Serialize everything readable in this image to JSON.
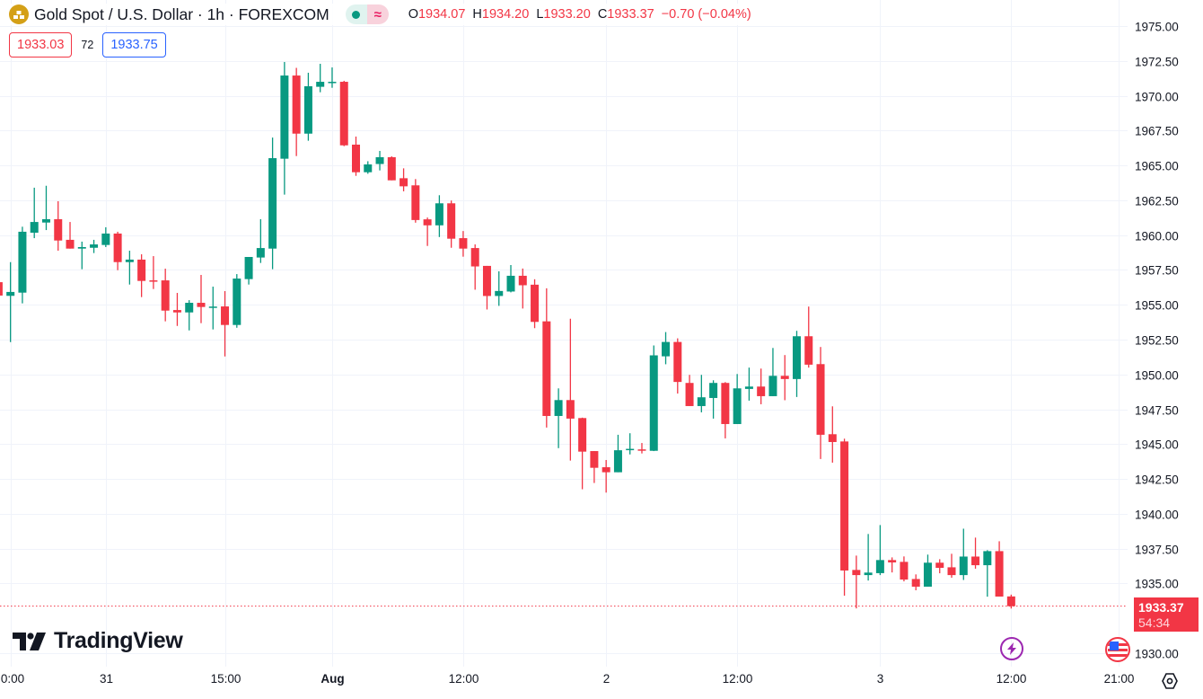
{
  "header": {
    "title": "Gold Spot / U.S. Dollar · 1h · FOREXCOM",
    "market_status_icon": "market-open-dot",
    "indicator_icon": "≈",
    "ohlc": {
      "o_label": "O",
      "o": "1934.07",
      "h_label": "H",
      "h": "1934.20",
      "l_label": "L",
      "l": "1933.20",
      "c_label": "C",
      "c": "1933.37",
      "change": "−0.70 (−0.04%)"
    }
  },
  "trade": {
    "sell": "1933.03",
    "spread": "72",
    "buy": "1933.75"
  },
  "logo": "TradingView",
  "last_price": {
    "price": "1933.37",
    "countdown": "54:34"
  },
  "colors": {
    "up": "#089981",
    "down": "#f23645",
    "grid": "#f0f3fa"
  },
  "chart_data": {
    "type": "candlestick",
    "title": "Gold Spot / U.S. Dollar · 1h · FOREXCOM",
    "ylim": [
      1929,
      1977
    ],
    "yticks": [
      "1975.00",
      "1972.50",
      "1970.00",
      "1967.50",
      "1965.00",
      "1962.50",
      "1960.00",
      "1957.50",
      "1955.00",
      "1952.50",
      "1950.00",
      "1947.50",
      "1945.00",
      "1942.50",
      "1940.00",
      "1937.50",
      "1935.00",
      "1930.00"
    ],
    "xticks": [
      {
        "label": "0:00",
        "bar": 1
      },
      {
        "label": "31",
        "bar": 9
      },
      {
        "label": "15:00",
        "bar": 19
      },
      {
        "label": "Aug",
        "bar": 28,
        "bold": true
      },
      {
        "label": "12:00",
        "bar": 39
      },
      {
        "label": "2",
        "bar": 51
      },
      {
        "label": "12:00",
        "bar": 62
      },
      {
        "label": "3",
        "bar": 74
      },
      {
        "label": "12:00",
        "bar": 85
      },
      {
        "label": "21:00",
        "bar": 94
      }
    ],
    "ohlc_fields": [
      "open",
      "high",
      "low",
      "close"
    ],
    "ohlc": [
      [
        1956.62,
        1957.6,
        1955.5,
        1955.66
      ],
      [
        1955.64,
        1958.06,
        1952.32,
        1955.92
      ],
      [
        1955.87,
        1960.6,
        1955.1,
        1960.24
      ],
      [
        1960.17,
        1963.4,
        1959.78,
        1960.94
      ],
      [
        1960.9,
        1963.54,
        1960.36,
        1961.14
      ],
      [
        1961.14,
        1962.43,
        1958.88,
        1959.61
      ],
      [
        1959.66,
        1960.94,
        1959.03,
        1959.03
      ],
      [
        1959.03,
        1959.53,
        1957.55,
        1959.14
      ],
      [
        1959.09,
        1959.66,
        1958.71,
        1959.33
      ],
      [
        1959.29,
        1960.56,
        1959.14,
        1960.11
      ],
      [
        1960.11,
        1960.24,
        1957.48,
        1958.06
      ],
      [
        1958.06,
        1958.88,
        1956.45,
        1958.24
      ],
      [
        1958.24,
        1958.62,
        1955.55,
        1956.71
      ],
      [
        1956.75,
        1958.49,
        1956.13,
        1956.7
      ],
      [
        1956.75,
        1957.59,
        1953.81,
        1954.58
      ],
      [
        1954.62,
        1955.85,
        1953.48,
        1954.45
      ],
      [
        1954.45,
        1955.33,
        1953.16,
        1955.14
      ],
      [
        1955.14,
        1957.14,
        1953.68,
        1954.84
      ],
      [
        1954.84,
        1956.3,
        1953.23,
        1954.87
      ],
      [
        1954.88,
        1955.98,
        1951.29,
        1953.55
      ],
      [
        1953.55,
        1957.2,
        1953.35,
        1956.88
      ],
      [
        1956.84,
        1958.43,
        1956.45,
        1958.43
      ],
      [
        1958.39,
        1961.14,
        1958.0,
        1959.07
      ],
      [
        1959.03,
        1967.0,
        1957.55,
        1965.52
      ],
      [
        1965.48,
        1972.42,
        1962.9,
        1971.45
      ],
      [
        1971.45,
        1972.0,
        1965.67,
        1967.28
      ],
      [
        1967.28,
        1971.65,
        1966.77,
        1970.68
      ],
      [
        1970.64,
        1972.29,
        1970.25,
        1971.0
      ],
      [
        1970.98,
        1972.03,
        1970.57,
        1971.0
      ],
      [
        1971.0,
        1971.07,
        1966.38,
        1966.44
      ],
      [
        1966.49,
        1967.07,
        1964.25,
        1964.51
      ],
      [
        1964.51,
        1965.3,
        1964.4,
        1965.07
      ],
      [
        1965.1,
        1966.04,
        1964.64,
        1965.59
      ],
      [
        1965.59,
        1965.65,
        1963.93,
        1963.93
      ],
      [
        1964.08,
        1964.79,
        1963.14,
        1963.5
      ],
      [
        1963.57,
        1964.02,
        1960.89,
        1961.08
      ],
      [
        1961.13,
        1961.26,
        1959.22,
        1960.7
      ],
      [
        1960.7,
        1962.86,
        1959.86,
        1962.28
      ],
      [
        1962.28,
        1962.48,
        1959.09,
        1959.74
      ],
      [
        1959.78,
        1960.29,
        1958.45,
        1959.03
      ],
      [
        1959.07,
        1959.33,
        1956.08,
        1957.75
      ],
      [
        1957.79,
        1957.79,
        1954.66,
        1955.63
      ],
      [
        1955.63,
        1957.4,
        1954.92,
        1955.99
      ],
      [
        1955.95,
        1957.85,
        1955.89,
        1957.08
      ],
      [
        1957.08,
        1957.6,
        1954.73,
        1956.4
      ],
      [
        1956.44,
        1956.83,
        1953.32,
        1953.77
      ],
      [
        1953.81,
        1956.18,
        1946.19,
        1947.02
      ],
      [
        1947.02,
        1949.0,
        1944.71,
        1948.16
      ],
      [
        1948.16,
        1954.0,
        1943.82,
        1946.83
      ],
      [
        1946.87,
        1946.9,
        1941.76,
        1944.46
      ],
      [
        1944.5,
        1944.5,
        1942.21,
        1943.3
      ],
      [
        1943.34,
        1943.86,
        1941.52,
        1942.98
      ],
      [
        1942.98,
        1945.67,
        1942.98,
        1944.56
      ],
      [
        1944.58,
        1945.78,
        1944.26,
        1944.66
      ],
      [
        1944.62,
        1945.08,
        1944.33,
        1944.56
      ],
      [
        1944.52,
        1952.08,
        1944.5,
        1951.37
      ],
      [
        1951.3,
        1953.04,
        1950.73,
        1952.33
      ],
      [
        1952.33,
        1952.59,
        1948.63,
        1949.46
      ],
      [
        1949.39,
        1949.97,
        1947.73,
        1947.73
      ],
      [
        1947.73,
        1949.97,
        1947.28,
        1948.36
      ],
      [
        1948.31,
        1949.58,
        1946.83,
        1949.39
      ],
      [
        1949.39,
        1949.45,
        1945.41,
        1946.44
      ],
      [
        1946.44,
        1950.03,
        1946.44,
        1949.0
      ],
      [
        1948.96,
        1950.49,
        1948.12,
        1949.13
      ],
      [
        1949.13,
        1950.42,
        1947.86,
        1948.44
      ],
      [
        1948.44,
        1951.9,
        1948.44,
        1949.9
      ],
      [
        1949.9,
        1951.39,
        1948.15,
        1949.67
      ],
      [
        1949.67,
        1953.13,
        1948.38,
        1952.74
      ],
      [
        1952.74,
        1954.87,
        1950.49,
        1950.7
      ],
      [
        1950.74,
        1951.97,
        1943.93,
        1945.67
      ],
      [
        1945.71,
        1947.71,
        1943.67,
        1945.15
      ],
      [
        1945.19,
        1945.39,
        1934.12,
        1935.93
      ],
      [
        1935.97,
        1937.0,
        1933.21,
        1935.6
      ],
      [
        1935.6,
        1938.55,
        1935.21,
        1935.78
      ],
      [
        1935.74,
        1939.19,
        1935.6,
        1936.68
      ],
      [
        1936.68,
        1936.87,
        1935.79,
        1936.51
      ],
      [
        1936.55,
        1936.94,
        1935.15,
        1935.28
      ],
      [
        1935.32,
        1935.65,
        1934.51,
        1934.77
      ],
      [
        1934.77,
        1937.07,
        1934.77,
        1936.49
      ],
      [
        1936.49,
        1936.74,
        1935.73,
        1936.12
      ],
      [
        1936.16,
        1937.13,
        1935.41,
        1935.6
      ],
      [
        1935.6,
        1938.93,
        1935.25,
        1936.93
      ],
      [
        1936.93,
        1938.29,
        1936.06,
        1936.31
      ],
      [
        1936.31,
        1937.39,
        1934.05,
        1937.32
      ],
      [
        1937.32,
        1938.03,
        1934.06,
        1934.06
      ],
      [
        1934.07,
        1934.2,
        1933.2,
        1933.37
      ]
    ],
    "last_close": 1933.37
  }
}
